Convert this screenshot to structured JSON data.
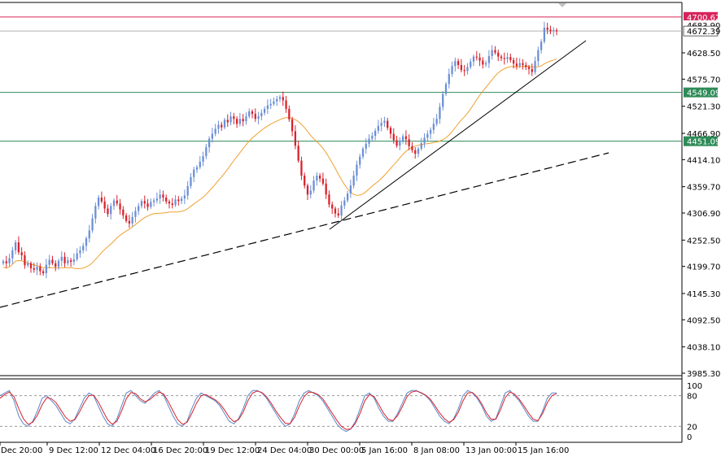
{
  "chart_data": [
    {
      "type": "candlestick",
      "panel": "price",
      "y_ticks": [
        "4628.50",
        "4575.70",
        "4521.30",
        "4466.90",
        "4414.10",
        "4359.70",
        "4306.90",
        "4252.50",
        "4199.70",
        "4145.30",
        "4092.50",
        "4038.10",
        "3985.30"
      ],
      "ylim": [
        3985.3,
        4703
      ],
      "x_labels": [
        "Dec 20:00",
        "9 Dec 12:00",
        "12 Dec 04:00",
        "16 Dec 20:00",
        "19 Dec 12:00",
        "24 Dec 04:00",
        "30 Dec 00:00",
        "5 Jan 16:00",
        "8 Jan 08:00",
        "13 Jan 00:00",
        "15 Jan 16:00"
      ],
      "levels": [
        {
          "label": "4700.62",
          "value": 4700.62,
          "color": "#d6245a"
        },
        {
          "label": "4683.90",
          "value": 4683.9,
          "color": "#bfbfbf",
          "partial": true
        },
        {
          "label": "4672.39",
          "value": 4672.39,
          "color": "#b0b0b0"
        },
        {
          "label": "4549.09",
          "value": 4549.09,
          "color": "#2e8b57"
        },
        {
          "label": "4451.09",
          "value": 4451.09,
          "color": "#2e8b57"
        }
      ],
      "up_color": "#6b8fd6",
      "down_color": "#d9212b",
      "moving_average_color": "#f0a030",
      "closes": [
        4210,
        4206,
        4216,
        4232,
        4248,
        4228,
        4222,
        4202,
        4206,
        4196,
        4193,
        4199,
        4190,
        4186,
        4203,
        4213,
        4206,
        4199,
        4211,
        4219,
        4206,
        4212,
        4209,
        4214,
        4226,
        4232,
        4241,
        4256,
        4272,
        4296,
        4321,
        4338,
        4330,
        4316,
        4305,
        4321,
        4332,
        4326,
        4314,
        4302,
        4291,
        4286,
        4299,
        4311,
        4321,
        4331,
        4326,
        4319,
        4329,
        4332,
        4336,
        4344,
        4338,
        4330,
        4326,
        4323,
        4334,
        4331,
        4336,
        4342,
        4361,
        4379,
        4394,
        4399,
        4410,
        4421,
        4439,
        4456,
        4466,
        4476,
        4484,
        4479,
        4494,
        4489,
        4501,
        4496,
        4486,
        4496,
        4491,
        4501,
        4511,
        4506,
        4496,
        4501,
        4508,
        4516,
        4523,
        4526,
        4531,
        4536,
        4540,
        4533,
        4516,
        4495,
        4471,
        4442,
        4412,
        4382,
        4362,
        4344,
        4352,
        4372,
        4382,
        4376,
        4366,
        4344,
        4324,
        4316,
        4306,
        4302,
        4322,
        4332,
        4346,
        4362,
        4382,
        4404,
        4420,
        4436,
        4446,
        4456,
        4462,
        4472,
        4482,
        4488,
        4492,
        4478,
        4466,
        4453,
        4442,
        4452,
        4461,
        4455,
        4441,
        4433,
        4426,
        4436,
        4447,
        4458,
        4466,
        4474,
        4486,
        4496,
        4520,
        4546,
        4566,
        4586,
        4602,
        4612,
        4604,
        4594,
        4592,
        4600,
        4611,
        4621,
        4619,
        4613,
        4605,
        4608,
        4622,
        4634,
        4629,
        4621,
        4618,
        4616,
        4620,
        4614,
        4607,
        4602,
        4608,
        4604,
        4600,
        4596,
        4590,
        4612,
        4634,
        4651,
        4679,
        4675,
        4672,
        4674,
        4672
      ]
    },
    {
      "type": "line",
      "panel": "stochastic",
      "ylim": [
        0,
        100
      ],
      "y_ticks": [
        "100",
        "80",
        "20",
        "0"
      ],
      "levels": [
        80,
        20
      ],
      "series": [
        {
          "color": "#5b87c9",
          "values": [
            80,
            85,
            90,
            70,
            40,
            25,
            20,
            30,
            50,
            75,
            80,
            70,
            60,
            45,
            30,
            25,
            35,
            55,
            75,
            85,
            80,
            60,
            40,
            25,
            20,
            35,
            60,
            85,
            90,
            80,
            70,
            65,
            75,
            85,
            90,
            80,
            60,
            40,
            25,
            20,
            30,
            55,
            75,
            85,
            80,
            75,
            70,
            60,
            45,
            30,
            25,
            35,
            55,
            80,
            90,
            90,
            85,
            75,
            60,
            45,
            30,
            20,
            25,
            45,
            70,
            85,
            90,
            85,
            80,
            70,
            55,
            40,
            25,
            15,
            10,
            15,
            30,
            55,
            80,
            85,
            75,
            55,
            40,
            30,
            30,
            45,
            65,
            85,
            90,
            90,
            85,
            80,
            70,
            55,
            40,
            30,
            25,
            35,
            55,
            80,
            90,
            85,
            75,
            60,
            40,
            30,
            35,
            60,
            85,
            90,
            80,
            70,
            55,
            40,
            30,
            30,
            50,
            75,
            85,
            85
          ]
        },
        {
          "color": "#d9212b",
          "values": [
            75,
            82,
            87,
            78,
            55,
            35,
            24,
            28,
            42,
            62,
            76,
            74,
            66,
            52,
            38,
            30,
            33,
            48,
            66,
            80,
            81,
            68,
            50,
            33,
            24,
            30,
            50,
            74,
            86,
            84,
            74,
            68,
            72,
            80,
            87,
            83,
            68,
            50,
            33,
            24,
            28,
            45,
            65,
            80,
            82,
            77,
            72,
            64,
            52,
            38,
            29,
            33,
            48,
            70,
            85,
            89,
            86,
            78,
            65,
            50,
            37,
            26,
            25,
            38,
            60,
            78,
            87,
            86,
            82,
            74,
            60,
            46,
            32,
            20,
            14,
            15,
            26,
            46,
            70,
            82,
            78,
            62,
            46,
            34,
            31,
            41,
            58,
            78,
            87,
            89,
            86,
            81,
            73,
            60,
            46,
            35,
            28,
            33,
            48,
            70,
            85,
            86,
            78,
            64,
            46,
            34,
            34,
            52,
            76,
            87,
            83,
            73,
            60,
            46,
            34,
            31,
            45,
            66,
            80,
            84
          ]
        }
      ]
    }
  ]
}
